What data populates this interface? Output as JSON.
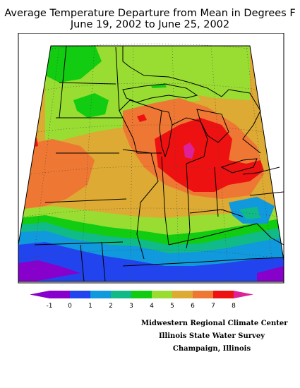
{
  "title": {
    "line1": "Average Temperature Departure from Mean in Degrees F",
    "line2": "June 19, 2002 to June 25, 2002"
  },
  "legend": {
    "ticks": [
      "-1",
      "0",
      "1",
      "2",
      "3",
      "4",
      "5",
      "6",
      "7",
      "8"
    ],
    "colors": [
      "#8800cc",
      "#2244ee",
      "#1199dd",
      "#11bb88",
      "#11cc11",
      "#99dd33",
      "#ddaa33",
      "#ee7733",
      "#ee1111",
      "#dd2299"
    ]
  },
  "credits": {
    "line1": "Midwestern Regional Climate Center",
    "line2": "Illinois State Water Survey",
    "line3": "Champaign, Illinois"
  }
}
